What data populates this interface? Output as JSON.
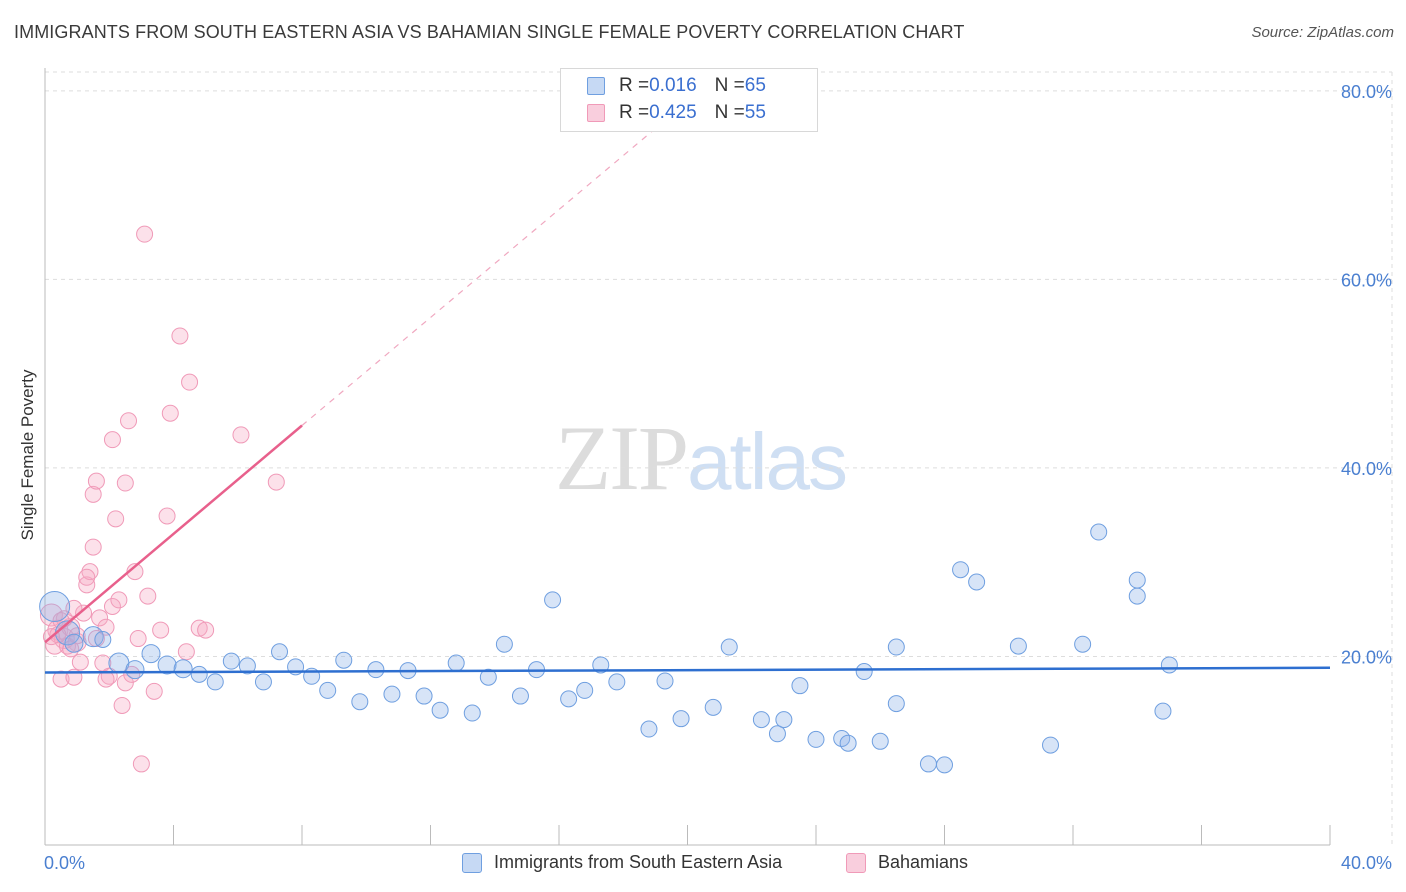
{
  "title": "IMMIGRANTS FROM SOUTH EASTERN ASIA VS BAHAMIAN SINGLE FEMALE POVERTY CORRELATION CHART",
  "source": "Source: ZipAtlas.com",
  "watermark": {
    "zip": "ZIP",
    "atlas": "atlas"
  },
  "legend": {
    "r_label": "R = ",
    "n_label": "N = ",
    "blue": {
      "r": "0.016",
      "n": "65"
    },
    "pink": {
      "r": "0.425",
      "n": "55"
    }
  },
  "colors": {
    "blue": "#6f9fe0",
    "pink": "#f09ab8",
    "blue_line": "#2e6fd0",
    "pink_line": "#e8608c"
  },
  "chart_data": {
    "type": "scatter",
    "title": "IMMIGRANTS FROM SOUTH EASTERN ASIA VS BAHAMIAN SINGLE FEMALE POVERTY CORRELATION CHART",
    "xlabel": "",
    "ylabel": "Single Female Poverty",
    "xlim": [
      0,
      40
    ],
    "ylim": [
      0,
      82
    ],
    "x_tick_labels": [
      "0.0%",
      "40.0%"
    ],
    "y_ticks": [
      20,
      40,
      60,
      80
    ],
    "y_tick_labels": [
      "20.0%",
      "40.0%",
      "60.0%",
      "80.0%"
    ],
    "grid": true,
    "legend_position": "top-center",
    "series": [
      {
        "name": "Immigrants from South Eastern Asia",
        "color": "#6f9fe0",
        "trend": {
          "x": [
            0,
            40
          ],
          "y": [
            18.3,
            18.8
          ]
        },
        "points": [
          {
            "x": 0.3,
            "y": 25.3,
            "r": 15
          },
          {
            "x": 0.7,
            "y": 22.5,
            "r": 12
          },
          {
            "x": 1.5,
            "y": 22.1,
            "r": 10
          },
          {
            "x": 0.9,
            "y": 21.4,
            "r": 9
          },
          {
            "x": 2.3,
            "y": 19.3,
            "r": 10
          },
          {
            "x": 2.8,
            "y": 18.6,
            "r": 9
          },
          {
            "x": 3.3,
            "y": 20.3,
            "r": 9
          },
          {
            "x": 3.8,
            "y": 19.1,
            "r": 9
          },
          {
            "x": 4.3,
            "y": 18.7,
            "r": 9
          },
          {
            "x": 4.8,
            "y": 18.1,
            "r": 8
          },
          {
            "x": 5.3,
            "y": 17.3,
            "r": 8
          },
          {
            "x": 5.8,
            "y": 19.5,
            "r": 8
          },
          {
            "x": 6.3,
            "y": 19.0,
            "r": 8
          },
          {
            "x": 6.8,
            "y": 17.3,
            "r": 8
          },
          {
            "x": 7.3,
            "y": 20.5,
            "r": 8
          },
          {
            "x": 7.8,
            "y": 18.9,
            "r": 8
          },
          {
            "x": 8.3,
            "y": 17.9,
            "r": 8
          },
          {
            "x": 8.8,
            "y": 16.4,
            "r": 8
          },
          {
            "x": 9.3,
            "y": 19.6,
            "r": 8
          },
          {
            "x": 9.8,
            "y": 15.2,
            "r": 8
          },
          {
            "x": 10.3,
            "y": 18.6,
            "r": 8
          },
          {
            "x": 10.8,
            "y": 16.0,
            "r": 8
          },
          {
            "x": 11.3,
            "y": 18.5,
            "r": 8
          },
          {
            "x": 11.8,
            "y": 15.8,
            "r": 8
          },
          {
            "x": 12.3,
            "y": 14.3,
            "r": 8
          },
          {
            "x": 12.8,
            "y": 19.3,
            "r": 8
          },
          {
            "x": 13.3,
            "y": 14.0,
            "r": 8
          },
          {
            "x": 13.8,
            "y": 17.8,
            "r": 8
          },
          {
            "x": 14.3,
            "y": 21.3,
            "r": 8
          },
          {
            "x": 14.8,
            "y": 15.8,
            "r": 8
          },
          {
            "x": 15.3,
            "y": 18.6,
            "r": 8
          },
          {
            "x": 15.8,
            "y": 26.0,
            "r": 8
          },
          {
            "x": 16.3,
            "y": 15.5,
            "r": 8
          },
          {
            "x": 16.8,
            "y": 16.4,
            "r": 8
          },
          {
            "x": 17.3,
            "y": 19.1,
            "r": 8
          },
          {
            "x": 17.8,
            "y": 17.3,
            "r": 8
          },
          {
            "x": 18.8,
            "y": 12.3,
            "r": 8
          },
          {
            "x": 19.3,
            "y": 17.4,
            "r": 8
          },
          {
            "x": 19.8,
            "y": 13.4,
            "r": 8
          },
          {
            "x": 20.8,
            "y": 14.6,
            "r": 8
          },
          {
            "x": 21.3,
            "y": 21.0,
            "r": 8
          },
          {
            "x": 22.3,
            "y": 13.3,
            "r": 8
          },
          {
            "x": 22.8,
            "y": 11.8,
            "r": 8
          },
          {
            "x": 23.5,
            "y": 16.9,
            "r": 8
          },
          {
            "x": 24.0,
            "y": 11.2,
            "r": 8
          },
          {
            "x": 24.8,
            "y": 11.3,
            "r": 8
          },
          {
            "x": 25.5,
            "y": 18.4,
            "r": 8
          },
          {
            "x": 26.5,
            "y": 15.0,
            "r": 8
          },
          {
            "x": 27.5,
            "y": 8.6,
            "r": 8
          },
          {
            "x": 28.5,
            "y": 29.2,
            "r": 8
          },
          {
            "x": 29.0,
            "y": 27.9,
            "r": 8
          },
          {
            "x": 30.3,
            "y": 21.1,
            "r": 8
          },
          {
            "x": 31.3,
            "y": 10.6,
            "r": 8
          },
          {
            "x": 32.8,
            "y": 33.2,
            "r": 8
          },
          {
            "x": 34.8,
            "y": 14.2,
            "r": 8
          },
          {
            "x": 25.0,
            "y": 10.8,
            "r": 8
          },
          {
            "x": 26.5,
            "y": 21.0,
            "r": 8
          },
          {
            "x": 34.0,
            "y": 28.1,
            "r": 8
          },
          {
            "x": 34.0,
            "y": 26.4,
            "r": 8
          },
          {
            "x": 35.0,
            "y": 19.1,
            "r": 8
          },
          {
            "x": 32.3,
            "y": 21.3,
            "r": 8
          },
          {
            "x": 28.0,
            "y": 8.5,
            "r": 8
          },
          {
            "x": 1.8,
            "y": 21.8,
            "r": 8
          },
          {
            "x": 26.0,
            "y": 11.0,
            "r": 8
          },
          {
            "x": 23.0,
            "y": 13.3,
            "r": 8
          }
        ]
      },
      {
        "name": "Bahamians",
        "color": "#f09ab8",
        "trend": {
          "x": [
            0,
            8
          ],
          "y": [
            21.5,
            44.5
          ]
        },
        "trend_extension": {
          "x": [
            8,
            19
          ],
          "y": [
            44.5,
            76
          ]
        },
        "points": [
          {
            "x": 0.2,
            "y": 24.4,
            "r": 11
          },
          {
            "x": 0.4,
            "y": 22.8,
            "r": 10
          },
          {
            "x": 0.6,
            "y": 21.9,
            "r": 10
          },
          {
            "x": 0.8,
            "y": 23.1,
            "r": 9
          },
          {
            "x": 1.0,
            "y": 21.5,
            "r": 9
          },
          {
            "x": 0.3,
            "y": 21.2,
            "r": 9
          },
          {
            "x": 1.2,
            "y": 24.6,
            "r": 8
          },
          {
            "x": 1.3,
            "y": 27.6,
            "r": 8
          },
          {
            "x": 1.4,
            "y": 29.0,
            "r": 8
          },
          {
            "x": 1.5,
            "y": 37.2,
            "r": 8
          },
          {
            "x": 1.6,
            "y": 38.6,
            "r": 8
          },
          {
            "x": 1.5,
            "y": 31.6,
            "r": 8
          },
          {
            "x": 1.7,
            "y": 24.1,
            "r": 8
          },
          {
            "x": 1.8,
            "y": 19.3,
            "r": 8
          },
          {
            "x": 1.9,
            "y": 23.1,
            "r": 8
          },
          {
            "x": 2.0,
            "y": 17.9,
            "r": 8
          },
          {
            "x": 2.1,
            "y": 25.3,
            "r": 8
          },
          {
            "x": 2.1,
            "y": 43.0,
            "r": 8
          },
          {
            "x": 2.2,
            "y": 34.6,
            "r": 8
          },
          {
            "x": 2.3,
            "y": 26.0,
            "r": 8
          },
          {
            "x": 2.4,
            "y": 14.8,
            "r": 8
          },
          {
            "x": 2.5,
            "y": 17.2,
            "r": 8
          },
          {
            "x": 2.5,
            "y": 38.4,
            "r": 8
          },
          {
            "x": 2.6,
            "y": 45.0,
            "r": 8
          },
          {
            "x": 2.7,
            "y": 18.1,
            "r": 8
          },
          {
            "x": 2.8,
            "y": 29.0,
            "r": 8
          },
          {
            "x": 3.0,
            "y": 8.6,
            "r": 8
          },
          {
            "x": 3.1,
            "y": 64.8,
            "r": 8
          },
          {
            "x": 3.2,
            "y": 26.4,
            "r": 8
          },
          {
            "x": 3.4,
            "y": 16.3,
            "r": 8
          },
          {
            "x": 3.6,
            "y": 22.8,
            "r": 8
          },
          {
            "x": 3.8,
            "y": 34.9,
            "r": 8
          },
          {
            "x": 3.9,
            "y": 45.8,
            "r": 8
          },
          {
            "x": 4.2,
            "y": 54.0,
            "r": 8
          },
          {
            "x": 4.4,
            "y": 20.5,
            "r": 8
          },
          {
            "x": 4.5,
            "y": 49.1,
            "r": 8
          },
          {
            "x": 4.8,
            "y": 23.0,
            "r": 8
          },
          {
            "x": 5.0,
            "y": 22.8,
            "r": 8
          },
          {
            "x": 6.1,
            "y": 43.5,
            "r": 8
          },
          {
            "x": 7.2,
            "y": 38.5,
            "r": 8
          },
          {
            "x": 0.5,
            "y": 17.6,
            "r": 8
          },
          {
            "x": 0.7,
            "y": 21.1,
            "r": 8
          },
          {
            "x": 0.9,
            "y": 17.8,
            "r": 8
          },
          {
            "x": 1.1,
            "y": 19.4,
            "r": 8
          },
          {
            "x": 1.3,
            "y": 28.4,
            "r": 8
          },
          {
            "x": 0.4,
            "y": 22.3,
            "r": 8
          },
          {
            "x": 0.6,
            "y": 24.0,
            "r": 8
          },
          {
            "x": 0.8,
            "y": 20.8,
            "r": 8
          },
          {
            "x": 1.0,
            "y": 22.2,
            "r": 8
          },
          {
            "x": 0.2,
            "y": 22.1,
            "r": 8
          },
          {
            "x": 1.6,
            "y": 21.9,
            "r": 8
          },
          {
            "x": 1.9,
            "y": 17.6,
            "r": 8
          },
          {
            "x": 2.9,
            "y": 21.9,
            "r": 8
          },
          {
            "x": 0.5,
            "y": 23.8,
            "r": 8
          },
          {
            "x": 0.9,
            "y": 25.1,
            "r": 8
          }
        ]
      }
    ]
  }
}
